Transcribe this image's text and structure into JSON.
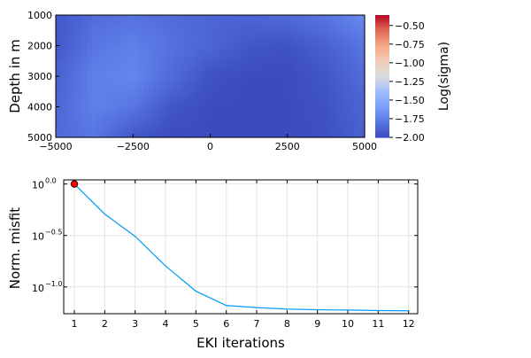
{
  "chart_data": [
    {
      "type": "heatmap",
      "xlabel": "",
      "ylabel": "Depth in m",
      "xlim": [
        -5000,
        5000
      ],
      "ylim": [
        1000,
        5000
      ],
      "y_reversed": true,
      "xticks": [
        "−5000",
        "−2500",
        "0",
        "2500",
        "5000"
      ],
      "xtick_values": [
        -5000,
        -2500,
        0,
        2500,
        5000
      ],
      "yticks": [
        "1000",
        "2000",
        "3000",
        "4000",
        "5000"
      ],
      "ytick_values": [
        1000,
        2000,
        3000,
        4000,
        5000
      ],
      "grid_x": [
        -5000,
        -3750,
        -2500,
        -1250,
        0,
        1250,
        2500,
        3750,
        5000
      ],
      "grid_y": [
        1000,
        2000,
        3000,
        4000,
        5000
      ],
      "values": [
        [
          -1.95,
          -1.85,
          -1.82,
          -1.85,
          -1.88,
          -1.88,
          -1.85,
          -1.8,
          -1.7
        ],
        [
          -1.95,
          -1.8,
          -1.75,
          -1.82,
          -1.88,
          -1.95,
          -1.97,
          -1.9,
          -1.8
        ],
        [
          -1.9,
          -1.75,
          -1.72,
          -1.85,
          -1.97,
          -2.0,
          -2.0,
          -1.95,
          -1.85
        ],
        [
          -1.88,
          -1.75,
          -1.8,
          -1.95,
          -2.0,
          -2.0,
          -2.0,
          -1.97,
          -1.88
        ],
        [
          -1.85,
          -1.8,
          -1.95,
          -2.0,
          -2.0,
          -2.0,
          -2.0,
          -1.98,
          -1.9
        ]
      ],
      "colorbar": {
        "label": "Log(sigma)",
        "colormap": "coolwarm",
        "range": [
          -2.0,
          -0.36
        ],
        "ticks": [
          "−0.50",
          "−0.75",
          "−1.00",
          "−1.25",
          "−1.50",
          "−1.75",
          "−2.00"
        ],
        "tick_values": [
          -0.5,
          -0.75,
          -1.0,
          -1.25,
          -1.5,
          -1.75,
          -2.0
        ]
      }
    },
    {
      "type": "line",
      "xlabel": "EKI iterations",
      "ylabel": "Norm. misfit",
      "y_scale": "log10",
      "xlim": [
        0.65,
        12.3
      ],
      "ylim_log10": [
        -1.26,
        0.04
      ],
      "grid": true,
      "xticks": [
        "1",
        "2",
        "3",
        "4",
        "5",
        "6",
        "7",
        "8",
        "9",
        "10",
        "11",
        "12"
      ],
      "ytick_values_log10": [
        0,
        -0.5,
        -1.0
      ],
      "ytick_base": "10",
      "ytick_exponents": [
        "0.0",
        "−0.5",
        "−1.0"
      ],
      "x": [
        1,
        2,
        3,
        4,
        5,
        6,
        7,
        8,
        9,
        10,
        11,
        12
      ],
      "values": [
        1.0,
        0.51,
        0.31,
        0.16,
        0.091,
        0.066,
        0.063,
        0.061,
        0.06,
        0.0596,
        0.0589,
        0.0586
      ],
      "line_color": "#009af9",
      "highlight": {
        "x": 1,
        "value": 1.0,
        "color": "#ff0000"
      }
    }
  ]
}
